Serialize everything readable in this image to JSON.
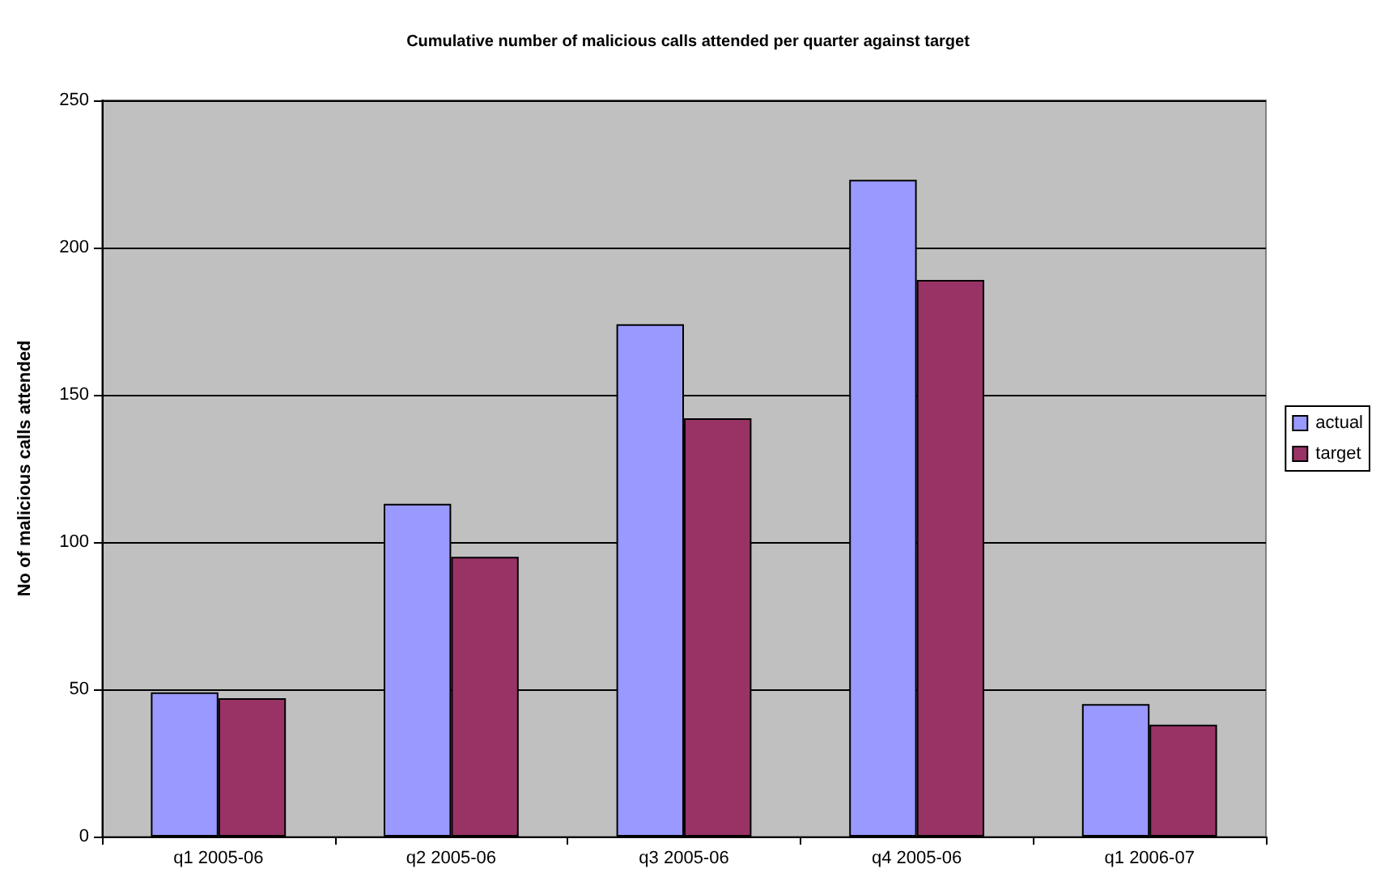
{
  "chart_data": {
    "type": "bar",
    "title": "Cumulative number of malicious calls attended per quarter against target",
    "ylabel": "No of malicious calls attended",
    "categories": [
      "q1 2005-06",
      "q2 2005-06",
      "q3 2005-06",
      "q4 2005-06",
      "q1 2006-07"
    ],
    "series": [
      {
        "name": "actual",
        "color": "#9999ff",
        "values": [
          49,
          113,
          174,
          223,
          45
        ]
      },
      {
        "name": "target",
        "color": "#993366",
        "values": [
          47,
          95,
          142,
          189,
          38
        ]
      }
    ],
    "ylim": [
      0,
      250
    ],
    "yticks": [
      0,
      50,
      100,
      150,
      200,
      250
    ],
    "grid": "y",
    "legend": "right"
  }
}
